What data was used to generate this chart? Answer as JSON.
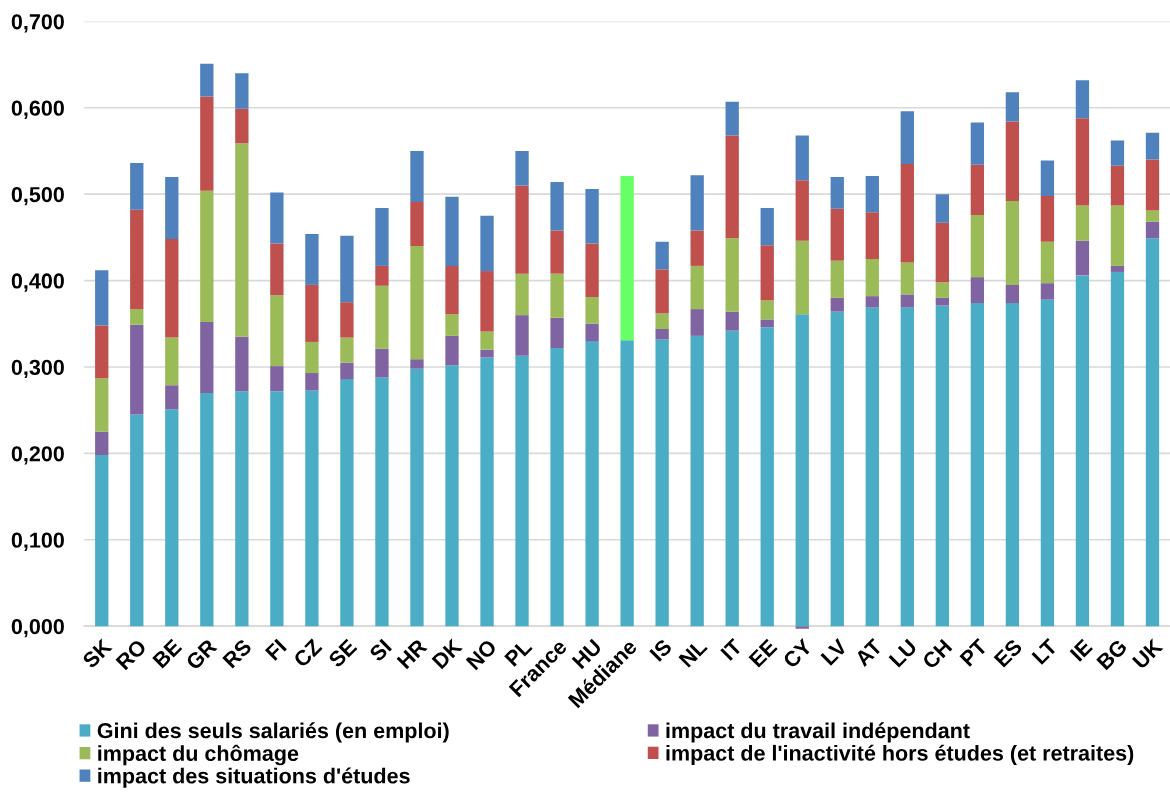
{
  "chart_data": {
    "type": "bar",
    "stacked": true,
    "categories": [
      "SK",
      "RO",
      "BE",
      "GR",
      "RS",
      "FI",
      "CZ",
      "SE",
      "SI",
      "HR",
      "DK",
      "NO",
      "PL",
      "France",
      "HU",
      "Médiane",
      "IS",
      "NL",
      "IT",
      "EE",
      "CY",
      "LV",
      "AT",
      "LU",
      "CH",
      "PT",
      "ES",
      "LT",
      "IE",
      "BG",
      "UK"
    ],
    "series": [
      {
        "name": "Gini des seuls salariés (en emploi)",
        "color": "#4bacc6",
        "values": [
          0.198,
          0.245,
          0.251,
          0.27,
          0.272,
          0.272,
          0.273,
          0.286,
          0.288,
          0.298,
          0.302,
          0.311,
          0.313,
          0.322,
          0.33,
          0.331,
          0.332,
          0.336,
          0.342,
          0.346,
          0.361,
          0.364,
          0.369,
          0.369,
          0.371,
          0.374,
          0.374,
          0.378,
          0.406,
          0.41,
          0.449
        ]
      },
      {
        "name": "impact du travail indépendant",
        "color": "#8064a2",
        "values": [
          0.027,
          0.104,
          0.028,
          0.082,
          0.063,
          0.029,
          0.02,
          0.019,
          0.033,
          0.011,
          0.034,
          0.009,
          0.047,
          0.035,
          0.02,
          null,
          0.012,
          0.031,
          0.022,
          0.009,
          -0.003,
          0.016,
          0.013,
          0.015,
          0.009,
          0.03,
          0.021,
          0.019,
          0.04,
          0.007,
          0.019
        ]
      },
      {
        "name": "impact du chômage",
        "color": "#9bbb59",
        "values": [
          0.062,
          0.018,
          0.055,
          0.152,
          0.224,
          0.082,
          0.036,
          0.029,
          0.073,
          0.131,
          0.025,
          0.021,
          0.048,
          0.051,
          0.031,
          null,
          0.018,
          0.05,
          0.085,
          0.022,
          0.085,
          0.043,
          0.043,
          0.037,
          0.018,
          0.072,
          0.097,
          0.048,
          0.041,
          0.07,
          0.013
        ]
      },
      {
        "name": "impact de l'inactivité hors études (et retraites)",
        "color": "#c0504d",
        "values": [
          0.061,
          0.115,
          0.114,
          0.109,
          0.04,
          0.06,
          0.066,
          0.041,
          0.023,
          0.051,
          0.056,
          0.07,
          0.102,
          0.05,
          0.062,
          null,
          0.051,
          0.041,
          0.119,
          0.064,
          0.07,
          0.06,
          0.054,
          0.114,
          0.069,
          0.058,
          0.092,
          0.053,
          0.101,
          0.046,
          0.059
        ]
      },
      {
        "name": "impact des situations d'études",
        "color": "#4f81bd",
        "values": [
          0.064,
          0.054,
          0.072,
          0.038,
          0.041,
          0.059,
          0.059,
          0.077,
          0.067,
          0.059,
          0.08,
          0.064,
          0.04,
          0.056,
          0.063,
          null,
          0.032,
          0.064,
          0.039,
          0.043,
          0.052,
          0.037,
          0.042,
          0.061,
          0.033,
          0.049,
          0.034,
          0.041,
          0.044,
          0.029,
          0.031
        ]
      },
      {
        "color": "#66ff66",
        "values": [
          null,
          null,
          null,
          null,
          null,
          null,
          null,
          null,
          null,
          null,
          null,
          null,
          null,
          null,
          null,
          0.19,
          null,
          null,
          null,
          null,
          null,
          null,
          null,
          null,
          null,
          null,
          null,
          null,
          null,
          null,
          null
        ]
      }
    ],
    "ylim": [
      -0.004,
      0.7
    ],
    "yticks": [
      {
        "value": 0,
        "label": "0,000"
      },
      {
        "value": 0.1,
        "label": "0,100"
      },
      {
        "value": 0.2,
        "label": "0,200"
      },
      {
        "value": 0.3,
        "label": "0,300"
      },
      {
        "value": 0.4,
        "label": "0,400"
      },
      {
        "value": 0.5,
        "label": "0,500"
      },
      {
        "value": 0.6,
        "label": "0,600"
      },
      {
        "value": 0.7,
        "label": "0,700"
      }
    ],
    "grid": "y",
    "legend": "bottom"
  }
}
